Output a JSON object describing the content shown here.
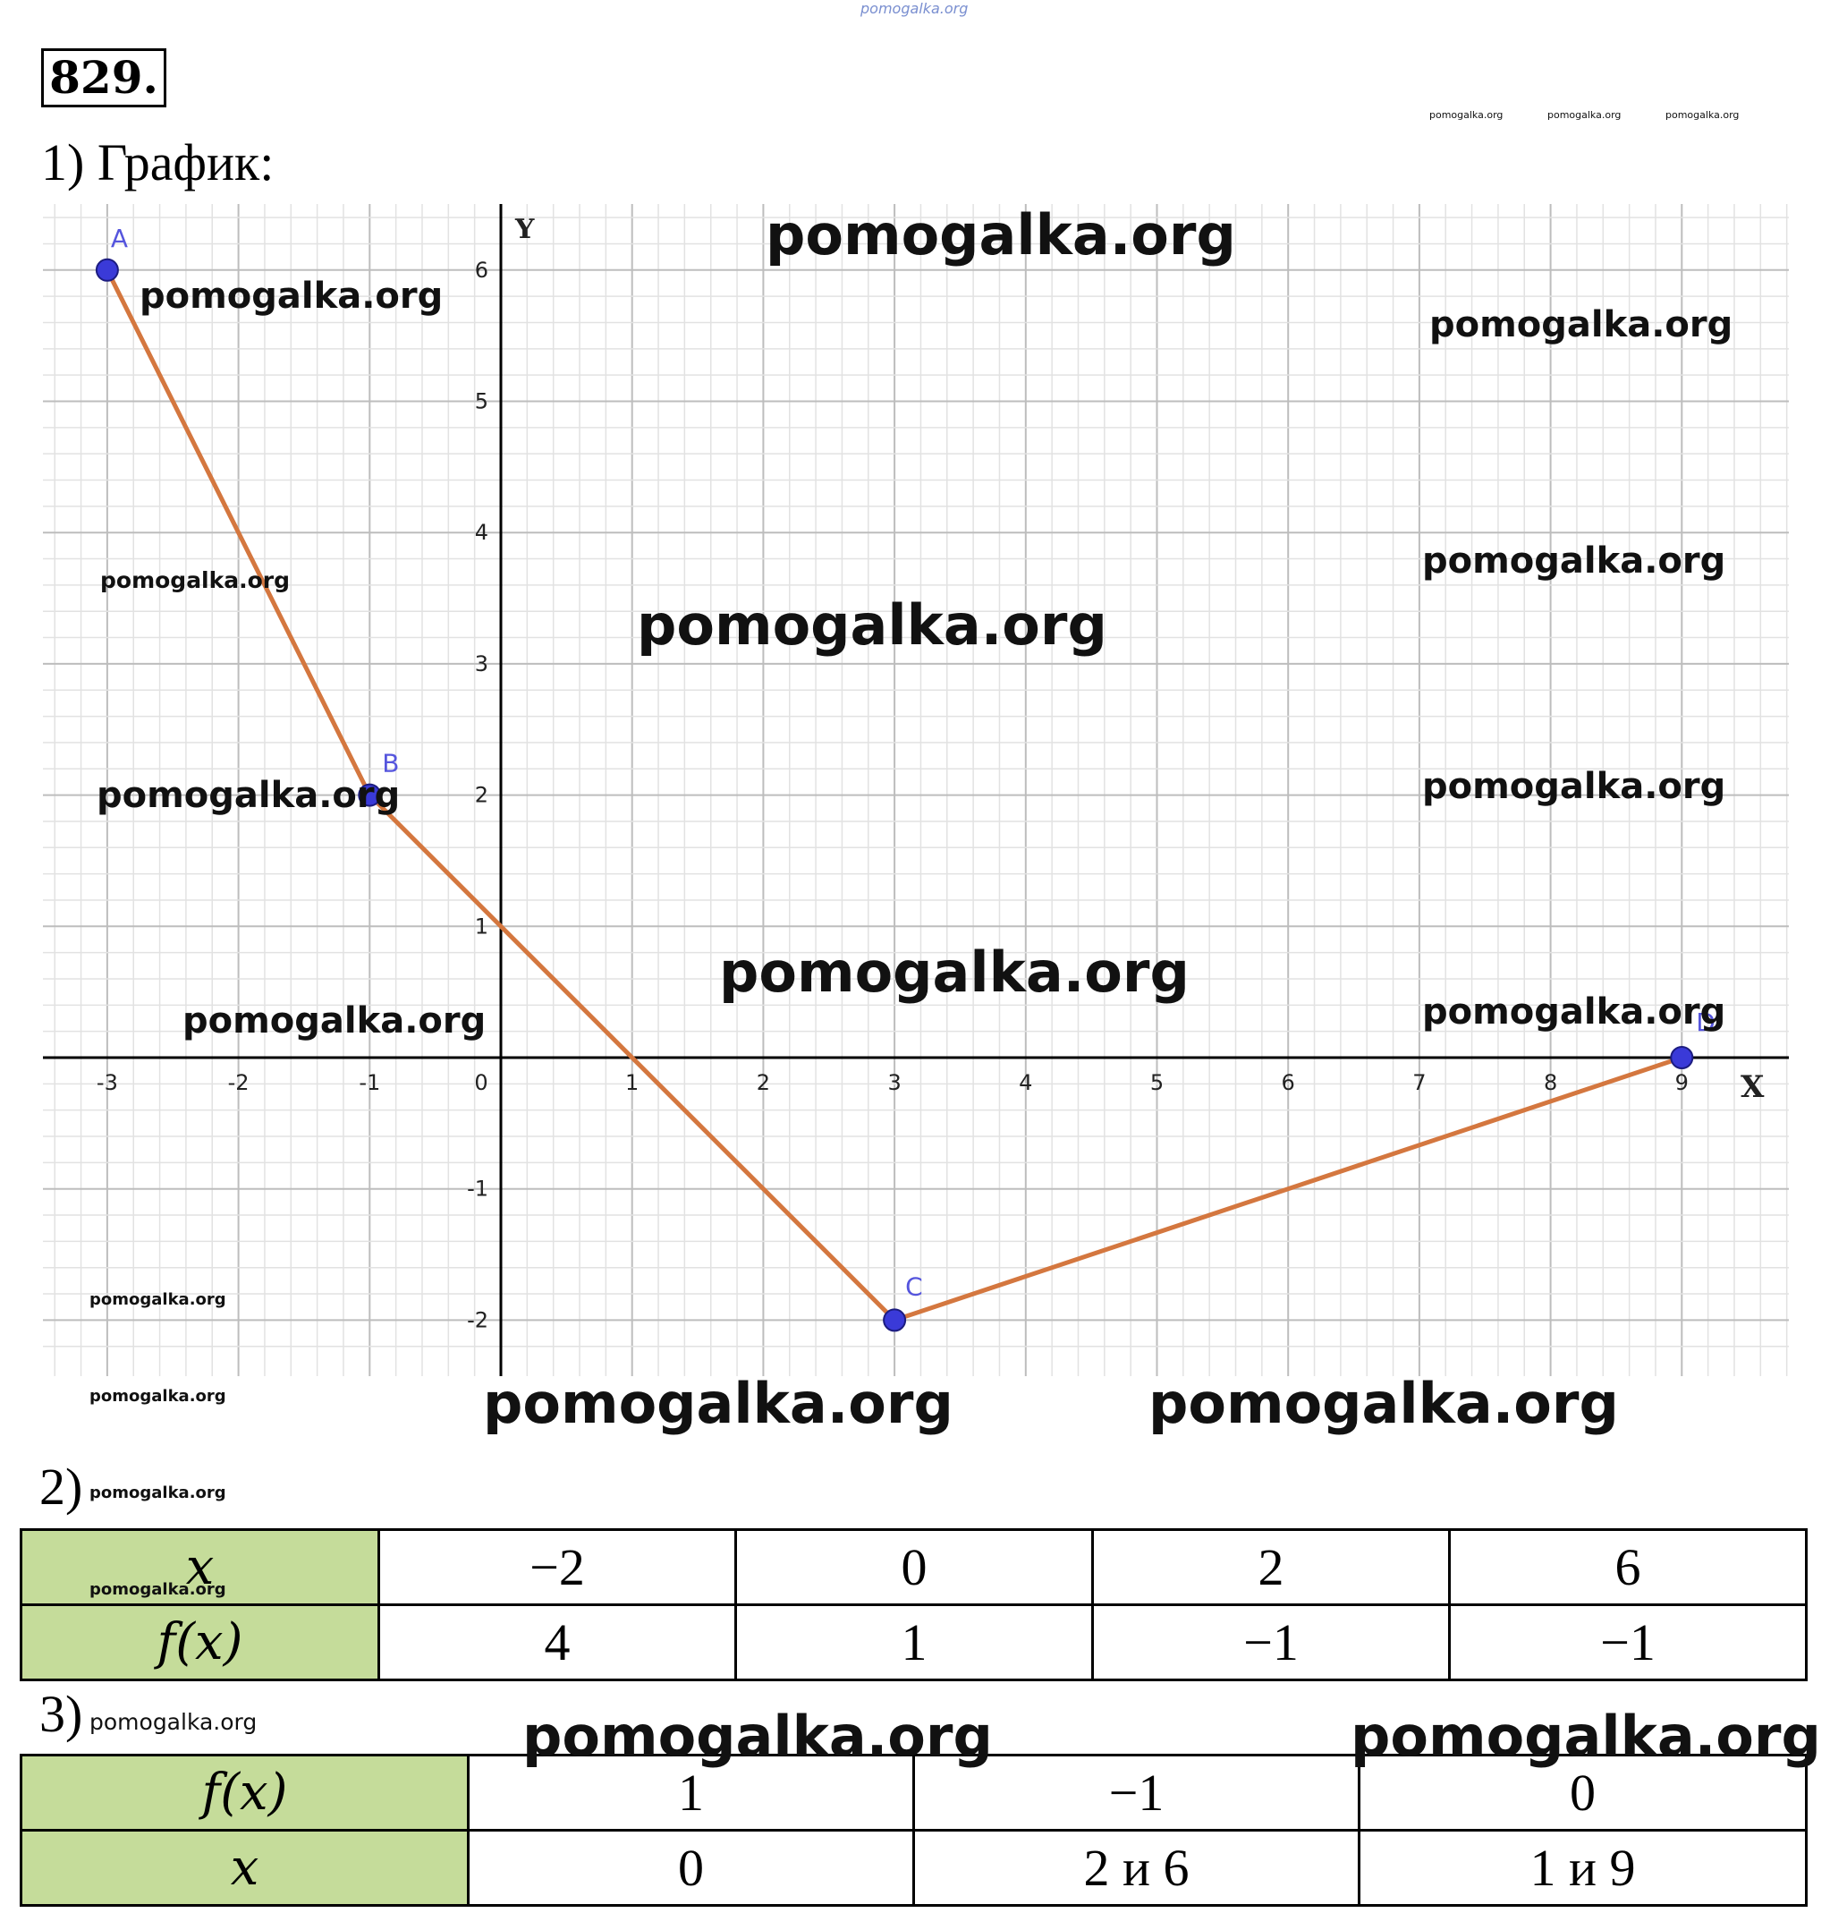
{
  "top_watermark": "pomogalka.org",
  "problem_number": "829.",
  "watermarks": {
    "top_right_small": [
      "pomogalka.org",
      "pomogalka.org",
      "pomogalka.org"
    ],
    "text": "pomogalka.org"
  },
  "part1": {
    "label": "1) График:"
  },
  "chart_data": {
    "type": "line",
    "x_axis_label": "X",
    "y_axis_label": "Y",
    "xlim": [
      -3.5,
      9.8
    ],
    "ylim": [
      -2.4,
      6.5
    ],
    "x_ticks": [
      "-3",
      "-2",
      "-1",
      "0",
      "1",
      "2",
      "3",
      "4",
      "5",
      "6",
      "7",
      "8",
      "9"
    ],
    "y_ticks": [
      "-2",
      "-1",
      "1",
      "2",
      "3",
      "4",
      "5",
      "6"
    ],
    "grid": true,
    "minor_grid_step": 0.2,
    "line_color": "#d4773f",
    "point_color": "#3a3ad8",
    "points": [
      {
        "name": "A",
        "x": -3,
        "y": 6
      },
      {
        "name": "B",
        "x": -1,
        "y": 2
      },
      {
        "name": "C",
        "x": 3,
        "y": -2
      },
      {
        "name": "D",
        "x": 9,
        "y": 0
      }
    ]
  },
  "part2": {
    "label": "2)",
    "row_headers": [
      "x",
      "f(x)"
    ],
    "x_values": [
      "−2",
      "0",
      "2",
      "6"
    ],
    "fx_values": [
      "4",
      "1",
      "−1",
      "−1"
    ]
  },
  "part3": {
    "label": "3)",
    "row_headers": [
      "f(x)",
      "x"
    ],
    "fx_values": [
      "1",
      "−1",
      "0"
    ],
    "x_values": [
      "0",
      "2 и 6",
      "1 и 9"
    ]
  },
  "colors": {
    "table_header_bg": "#c5dc9a"
  }
}
